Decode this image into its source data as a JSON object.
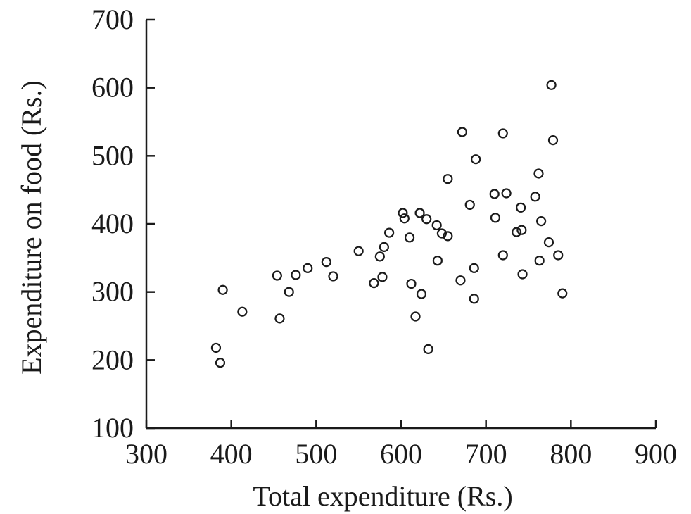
{
  "chart_data": {
    "type": "scatter",
    "title": "",
    "xlabel": "Total expenditure (Rs.)",
    "ylabel": "Expenditure on food (Rs.)",
    "xlim": [
      300,
      900
    ],
    "ylim": [
      100,
      700
    ],
    "xticks": [
      "300",
      "400",
      "500",
      "600",
      "700",
      "800",
      "900"
    ],
    "yticks": [
      "100",
      "200",
      "300",
      "400",
      "500",
      "600",
      "700"
    ],
    "grid": false,
    "legend": "none",
    "marker": "open-circle",
    "color": "#1a1a1a",
    "points": [
      {
        "x": 382,
        "y": 218
      },
      {
        "x": 387,
        "y": 196
      },
      {
        "x": 390,
        "y": 303
      },
      {
        "x": 413,
        "y": 271
      },
      {
        "x": 454,
        "y": 324
      },
      {
        "x": 457,
        "y": 261
      },
      {
        "x": 468,
        "y": 300
      },
      {
        "x": 476,
        "y": 325
      },
      {
        "x": 490,
        "y": 335
      },
      {
        "x": 512,
        "y": 344
      },
      {
        "x": 520,
        "y": 323
      },
      {
        "x": 550,
        "y": 360
      },
      {
        "x": 568,
        "y": 313
      },
      {
        "x": 575,
        "y": 352
      },
      {
        "x": 578,
        "y": 322
      },
      {
        "x": 580,
        "y": 366
      },
      {
        "x": 586,
        "y": 387
      },
      {
        "x": 602,
        "y": 416
      },
      {
        "x": 604,
        "y": 408
      },
      {
        "x": 610,
        "y": 380
      },
      {
        "x": 612,
        "y": 312
      },
      {
        "x": 617,
        "y": 264
      },
      {
        "x": 622,
        "y": 416
      },
      {
        "x": 624,
        "y": 297
      },
      {
        "x": 630,
        "y": 407
      },
      {
        "x": 632,
        "y": 216
      },
      {
        "x": 642,
        "y": 398
      },
      {
        "x": 643,
        "y": 346
      },
      {
        "x": 648,
        "y": 386
      },
      {
        "x": 655,
        "y": 382
      },
      {
        "x": 655,
        "y": 466
      },
      {
        "x": 670,
        "y": 317
      },
      {
        "x": 672,
        "y": 535
      },
      {
        "x": 681,
        "y": 428
      },
      {
        "x": 686,
        "y": 335
      },
      {
        "x": 686,
        "y": 290
      },
      {
        "x": 688,
        "y": 495
      },
      {
        "x": 710,
        "y": 444
      },
      {
        "x": 711,
        "y": 409
      },
      {
        "x": 720,
        "y": 533
      },
      {
        "x": 720,
        "y": 354
      },
      {
        "x": 724,
        "y": 445
      },
      {
        "x": 736,
        "y": 388
      },
      {
        "x": 741,
        "y": 424
      },
      {
        "x": 742,
        "y": 391
      },
      {
        "x": 743,
        "y": 326
      },
      {
        "x": 758,
        "y": 440
      },
      {
        "x": 762,
        "y": 474
      },
      {
        "x": 763,
        "y": 346
      },
      {
        "x": 765,
        "y": 404
      },
      {
        "x": 774,
        "y": 373
      },
      {
        "x": 777,
        "y": 604
      },
      {
        "x": 779,
        "y": 523
      },
      {
        "x": 785,
        "y": 354
      },
      {
        "x": 790,
        "y": 298
      }
    ]
  }
}
